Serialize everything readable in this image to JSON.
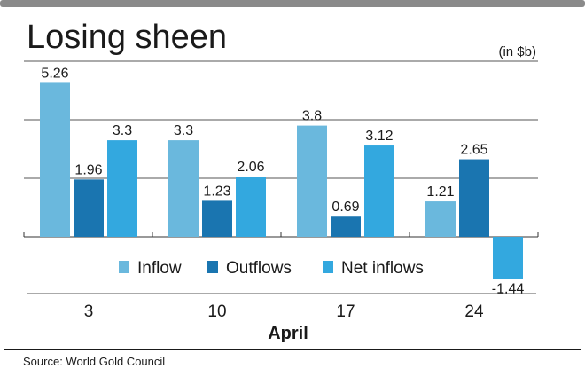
{
  "chart_data": {
    "type": "bar",
    "title": "Losing sheen",
    "unit_label": "(in $b)",
    "xlabel": "April",
    "ylabel": "",
    "categories": [
      "3",
      "10",
      "17",
      "24"
    ],
    "series": [
      {
        "name": "Inflow",
        "color": "#6ab8dd",
        "values": [
          5.26,
          3.3,
          3.8,
          1.21
        ],
        "labels": [
          "5.26",
          "3.3",
          "3.8",
          "1.21"
        ]
      },
      {
        "name": "Outflows",
        "color": "#1a75b0",
        "values": [
          1.96,
          1.23,
          0.69,
          2.65
        ],
        "labels": [
          "1.96",
          "1.23",
          "0.69",
          "2.65"
        ]
      },
      {
        "name": "Net inflows",
        "color": "#33a8df",
        "values": [
          3.3,
          2.06,
          3.12,
          -1.44
        ],
        "labels": [
          "3.3",
          "2.06",
          "3.12",
          "-1.44"
        ]
      }
    ],
    "ylim": [
      -1.9,
      6
    ],
    "gridlines": [
      2,
      4,
      6
    ],
    "grid": true,
    "legend_position": "bottom-center",
    "source": "Source: World Gold Council"
  }
}
